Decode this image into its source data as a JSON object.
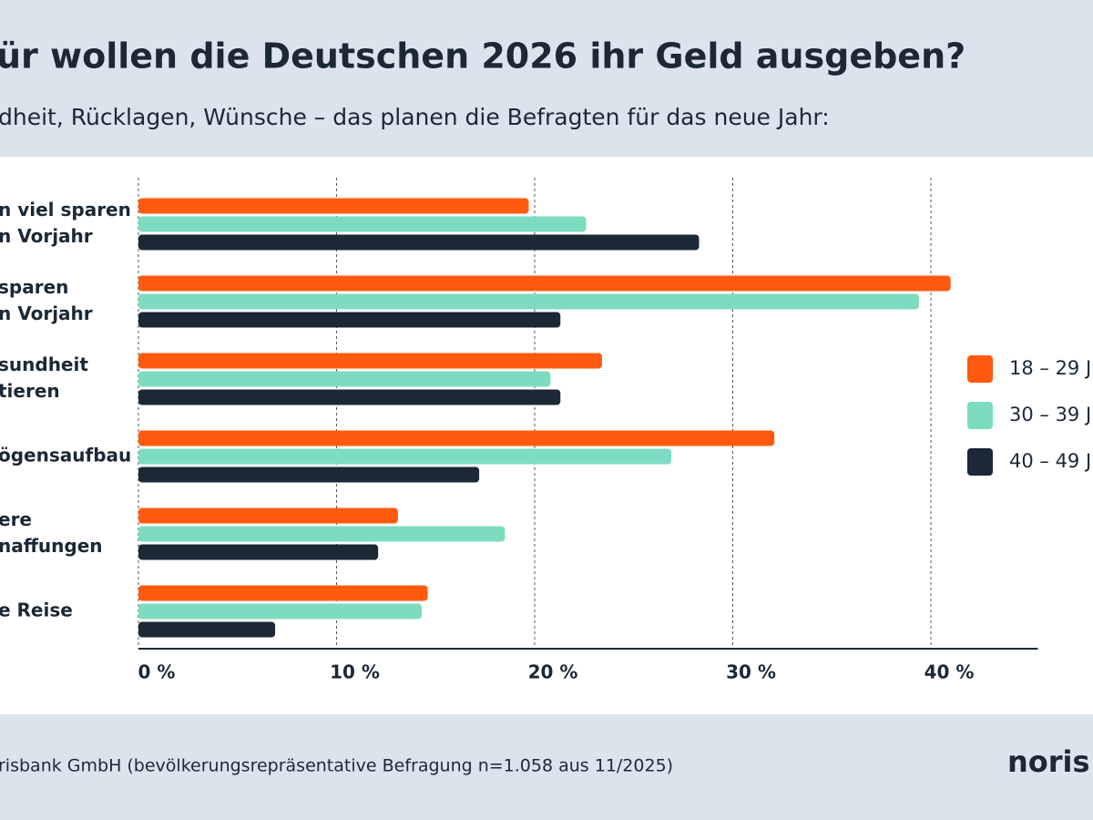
{
  "chart_data": {
    "type": "barh",
    "title": "ür wollen die Deutschen 2026 ihr Geld ausgeben?",
    "subtitle": "dheit, Rücklagen, Wünsche – das planen die Befragten für das neue Jahr:",
    "categories": [
      [
        "n viel sparen",
        "n Vorjahr"
      ],
      [
        "sparen",
        "n Vorjahr"
      ],
      [
        "sundheit",
        "tieren"
      ],
      [
        "ögensaufbau"
      ],
      [
        "ere",
        "naffungen"
      ],
      [
        "e Reise"
      ]
    ],
    "series": [
      {
        "name": "18 – 29 J",
        "color": "#ff5a0f",
        "values": [
          19.7,
          41.0,
          23.4,
          32.1,
          13.1,
          14.6
        ]
      },
      {
        "name": "30 – 39 J",
        "color": "#7ddcc0",
        "values": [
          22.6,
          39.4,
          20.8,
          26.9,
          18.5,
          14.3
        ]
      },
      {
        "name": "40 – 49 J",
        "color": "#1c2836",
        "values": [
          28.3,
          21.3,
          21.3,
          17.2,
          12.1,
          6.9
        ]
      }
    ],
    "xlim": [
      0,
      45.4
    ],
    "xticks": [
      {
        "value": 0,
        "label": "0 %"
      },
      {
        "value": 10,
        "label": "10 %"
      },
      {
        "value": 20,
        "label": "20 %"
      },
      {
        "value": 30,
        "label": "30 %"
      },
      {
        "value": 40,
        "label": "40 %"
      }
    ],
    "grid": true,
    "legend": "right",
    "source": "risbank GmbH (bevölkerungsrepräsentative Befragung n=1.058 aus 11/2025)",
    "logo": "noris"
  }
}
